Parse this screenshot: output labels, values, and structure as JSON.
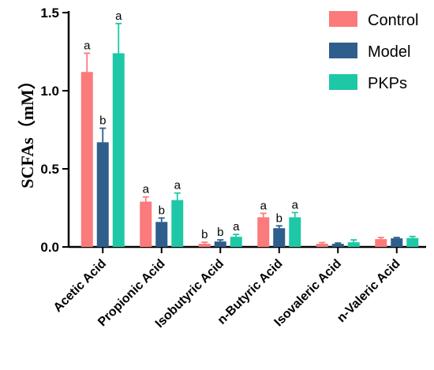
{
  "chart_data": {
    "type": "bar",
    "title": "",
    "xlabel": "",
    "ylabel": "SCFAs（mM）",
    "ylim": [
      0,
      1.5
    ],
    "yticks": [
      "0.0",
      "0.5",
      "1.0",
      "1.5"
    ],
    "categories": [
      "Acetic Acid",
      "Propionic Acid",
      "Isobutyric Acid",
      "n-Butyric Acid",
      "Isovaleric Acid",
      "n-Valeric Acid"
    ],
    "series": [
      {
        "name": "Control",
        "color": "#fb7a7c",
        "values": [
          1.12,
          0.29,
          0.02,
          0.19,
          0.02,
          0.05
        ],
        "errors": [
          0.12,
          0.03,
          0.01,
          0.025,
          0.008,
          0.01
        ],
        "labels": [
          "a",
          "a",
          "b",
          "a",
          "",
          ""
        ]
      },
      {
        "name": "Model",
        "color": "#2e5e8c",
        "values": [
          0.67,
          0.16,
          0.035,
          0.12,
          0.02,
          0.055
        ],
        "errors": [
          0.09,
          0.025,
          0.01,
          0.015,
          0.005,
          0.005
        ],
        "labels": [
          "b",
          "b",
          "b",
          "b",
          "",
          ""
        ]
      },
      {
        "name": "PKPs",
        "color": "#1ec8a6",
        "values": [
          1.24,
          0.3,
          0.065,
          0.19,
          0.03,
          0.057
        ],
        "errors": [
          0.19,
          0.045,
          0.015,
          0.03,
          0.015,
          0.01
        ],
        "labels": [
          "a",
          "a",
          "a",
          "a",
          "",
          ""
        ]
      }
    ],
    "legend_position": "top-right",
    "grid": false
  }
}
